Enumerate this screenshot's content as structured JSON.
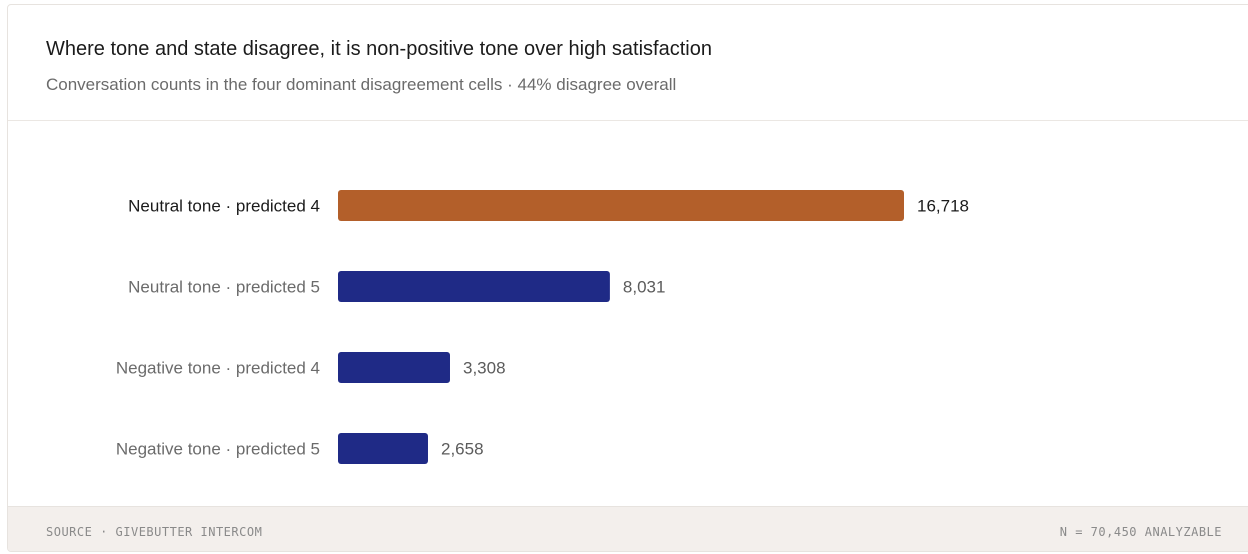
{
  "header": {
    "title": "Where tone and state disagree, it is non-positive tone over high satisfaction",
    "subtitle": "Conversation counts in the four dominant disagreement cells · 44% disagree overall"
  },
  "chart_data": {
    "type": "bar",
    "orientation": "horizontal",
    "categories": [
      "Neutral tone · predicted 4",
      "Neutral tone · predicted 5",
      "Negative tone · predicted 4",
      "Negative tone · predicted 5"
    ],
    "values": [
      16718,
      8031,
      3308,
      2658
    ],
    "value_labels": [
      "16,718",
      "8,031",
      "3,308",
      "2,658"
    ],
    "highlight_index": 0,
    "colors": {
      "highlight": "#b35f2a",
      "default": "#1f2a86"
    },
    "xlim": [
      0,
      16718
    ],
    "grid": false
  },
  "footer": {
    "source": "SOURCE · GIVEBUTTER INTERCOM",
    "n": "N = 70,450 ANALYZABLE"
  }
}
